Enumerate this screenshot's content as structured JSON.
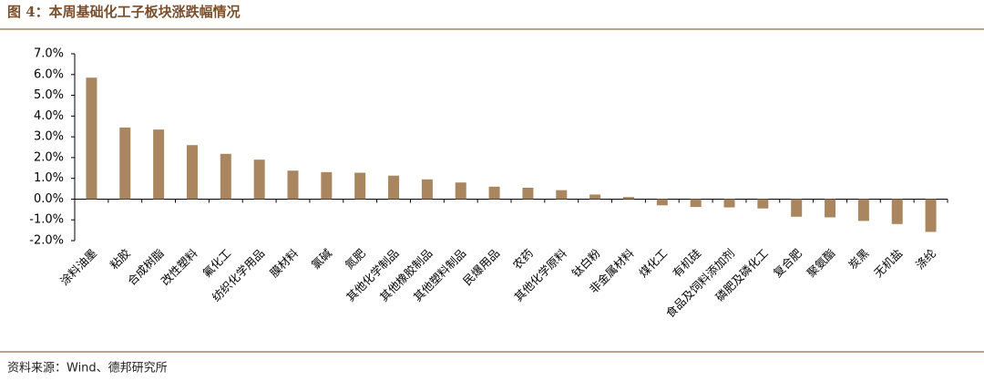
{
  "chart_data": {
    "type": "bar",
    "title": "图 4：本周基础化工子板块涨跌幅情况",
    "source": "资料来源：Wind、德邦研究所",
    "categories": [
      "涂料油墨",
      "粘胶",
      "合成树脂",
      "改性塑料",
      "氟化工",
      "纺织化学用品",
      "膜材料",
      "氯碱",
      "氮肥",
      "其他化学制品",
      "其他橡胶制品",
      "其他塑料制品",
      "民爆用品",
      "农药",
      "其他化学原料",
      "钛白粉",
      "非金属材料",
      "煤化工",
      "有机硅",
      "食品及饲料添加剂",
      "磷肥及磷化工",
      "复合肥",
      "聚氨酯",
      "炭黑",
      "无机盐",
      "涤纶"
    ],
    "values": [
      5.85,
      3.45,
      3.35,
      2.6,
      2.18,
      1.9,
      1.37,
      1.3,
      1.27,
      1.13,
      0.95,
      0.8,
      0.6,
      0.55,
      0.43,
      0.22,
      0.1,
      -0.3,
      -0.38,
      -0.4,
      -0.45,
      -0.85,
      -0.88,
      -1.05,
      -1.2,
      -1.58
    ],
    "color": "#a9865f",
    "ylim": [
      -2,
      7
    ],
    "yticks": [
      {
        "value": -2,
        "label": "-2.0%"
      },
      {
        "value": -1,
        "label": "-1.0%"
      },
      {
        "value": 0,
        "label": "0.0%"
      },
      {
        "value": 1,
        "label": "1.0%"
      },
      {
        "value": 2,
        "label": "2.0%"
      },
      {
        "value": 3,
        "label": "3.0%"
      },
      {
        "value": 4,
        "label": "4.0%"
      },
      {
        "value": 5,
        "label": "5.0%"
      },
      {
        "value": 6,
        "label": "6.0%"
      },
      {
        "value": 7,
        "label": "7.0%"
      }
    ],
    "grid": false
  }
}
